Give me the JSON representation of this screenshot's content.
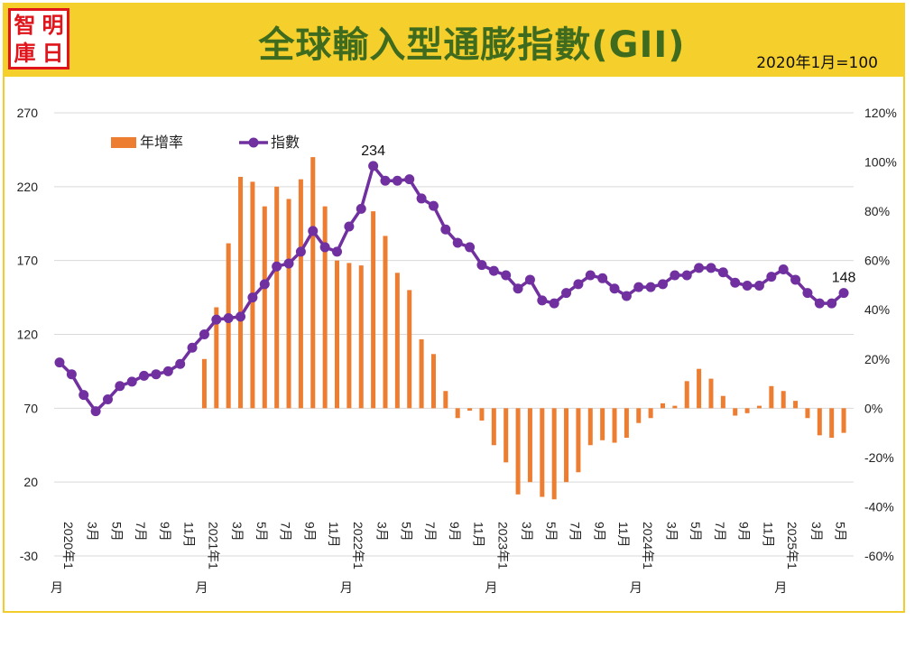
{
  "header": {
    "logo_chars": [
      "智",
      "明",
      "庫",
      "日"
    ],
    "title": "全球輸入型通膨指數(GII)",
    "subtitle": "2020年1月=100"
  },
  "colors": {
    "header_bg": "#f5cf2b",
    "title": "#3f6b1f",
    "bar": "#ed7d31",
    "line": "#7030a0",
    "grid": "#d9d9d9",
    "logo_red": "#e0141b"
  },
  "chart_data": {
    "type": "bar+line",
    "legend": {
      "position": "top-left",
      "bar_label": "年增率",
      "line_label": "指數"
    },
    "left_axis": {
      "ylim": [
        -30,
        270
      ],
      "ticks": [
        270,
        220,
        170,
        120,
        70,
        20,
        -30
      ]
    },
    "right_axis": {
      "ylim": [
        -0.6,
        1.2
      ],
      "ticks": [
        "120%",
        "100%",
        "80%",
        "60%",
        "40%",
        "20%",
        "0%",
        "-20%",
        "-40%",
        "-60%"
      ]
    },
    "grid": true,
    "x_tick_labels": [
      "2020年1月",
      "3月",
      "5月",
      "7月",
      "9月",
      "11月",
      "2021年1月",
      "3月",
      "5月",
      "7月",
      "9月",
      "11月",
      "2022年1月",
      "3月",
      "5月",
      "7月",
      "9月",
      "11月",
      "2023年1月",
      "3月",
      "5月",
      "7月",
      "9月",
      "11月",
      "2024年1月",
      "3月",
      "5月",
      "7月",
      "9月",
      "11月",
      "2025年1月",
      "3月",
      "5月"
    ],
    "index": [
      101,
      93,
      79,
      68,
      76,
      85,
      88,
      92,
      93,
      95,
      100,
      111,
      120,
      130,
      131,
      132,
      145,
      154,
      166,
      168,
      176,
      190,
      179,
      176,
      193,
      205,
      234,
      224,
      224,
      225,
      212,
      207,
      191,
      182,
      179,
      167,
      163,
      160,
      151,
      157,
      143,
      141,
      148,
      154,
      160,
      158,
      151,
      146,
      152,
      152,
      154,
      160,
      160,
      165,
      165,
      162,
      155,
      153,
      153,
      159,
      164,
      157,
      148,
      141,
      141,
      148
    ],
    "yoy": [
      null,
      null,
      null,
      null,
      null,
      null,
      null,
      null,
      null,
      null,
      null,
      null,
      0.2,
      0.41,
      0.67,
      0.94,
      0.92,
      0.82,
      0.9,
      0.85,
      0.93,
      1.02,
      0.82,
      0.6,
      0.59,
      0.58,
      0.8,
      0.7,
      0.55,
      0.48,
      0.28,
      0.22,
      0.07,
      -0.04,
      -0.01,
      -0.05,
      -0.15,
      -0.22,
      -0.35,
      -0.3,
      -0.36,
      -0.37,
      -0.3,
      -0.26,
      -0.15,
      -0.13,
      -0.14,
      -0.12,
      -0.06,
      -0.04,
      0.02,
      0.01,
      0.11,
      0.16,
      0.12,
      0.05,
      -0.03,
      -0.02,
      0.01,
      0.09,
      0.07,
      0.03,
      -0.04,
      -0.11,
      -0.12,
      -0.1
    ],
    "annotations": [
      {
        "label": "234",
        "point_index": 26
      },
      {
        "label": "148",
        "point_index": 65
      }
    ]
  }
}
